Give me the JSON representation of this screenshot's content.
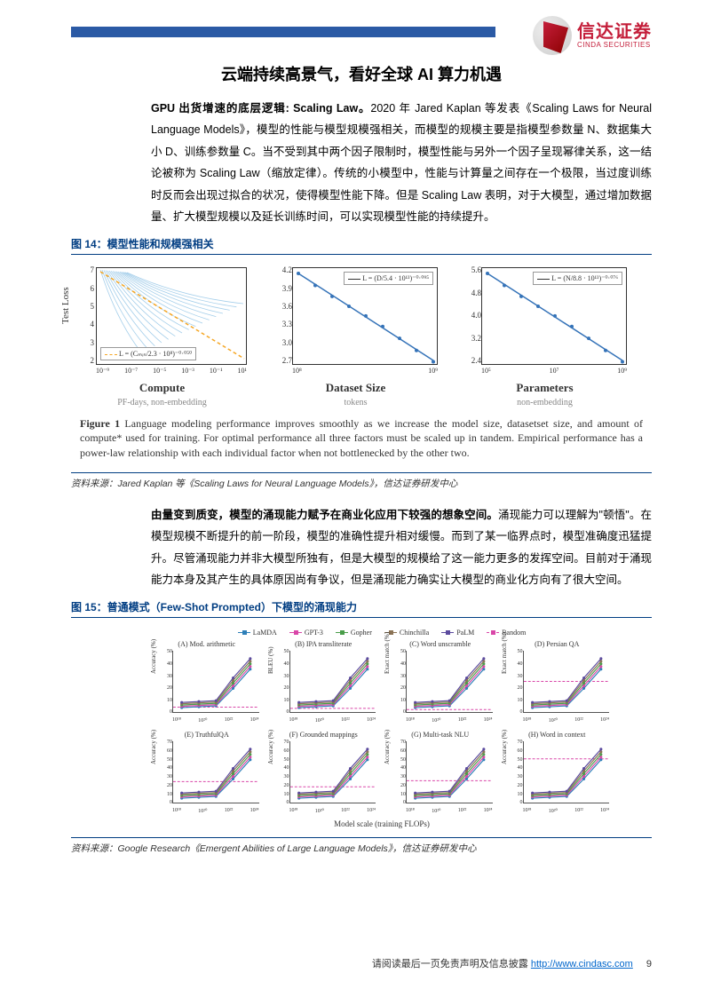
{
  "brand": {
    "cn": "信达证券",
    "en": "CINDA SECURITIES"
  },
  "title": "云端持续高景气，看好全球 AI 算力机遇",
  "para1_lead": "GPU 出货增速的底层逻辑: Scaling Law。",
  "para1_body": "2020 年 Jared Kaplan 等发表《Scaling Laws for Neural Language Models》，模型的性能与模型规模强相关，而模型的规模主要是指模型参数量 N、数据集大小 D、训练参数量 C。当不受到其中两个因子限制时，模型性能与另外一个因子呈现幂律关系，这一结论被称为 Scaling Law（缩放定律）。传统的小模型中，性能与计算量之间存在一个极限，当过度训练时反而会出现过拟合的状况，使得模型性能下降。但是 Scaling Law 表明，对于大模型，通过增加数据量、扩大模型规模以及延长训练时间，可以实现模型性能的持续提升。",
  "fig14_label": "图 14：模型性能和规模强相关",
  "chart1": {
    "ylabel": "Test Loss",
    "panel1": {
      "xlabel": "Compute",
      "xsub": "PF-days, non-embedding",
      "yticks": [
        "7",
        "6",
        "5",
        "4",
        "3",
        "2"
      ],
      "xticks": [
        "10⁻⁹",
        "10⁻⁷",
        "10⁻⁵",
        "10⁻³",
        "10⁻¹",
        "10¹"
      ],
      "legend": "L = (Cₘᵢₙ/2.3 · 10⁸)⁻⁰·⁰⁵⁰",
      "line_color": "#f5a623",
      "fan_color": "#5aa6d8",
      "fan_lines": 16
    },
    "panel2": {
      "xlabel": "Dataset Size",
      "xsub": "tokens",
      "yticks": [
        "4.2",
        "3.9",
        "3.6",
        "3.3",
        "3.0",
        "2.7"
      ],
      "xticks": [
        "10⁸",
        "10⁹"
      ],
      "legend": "L = (D/5.4 · 10¹³)⁻⁰·⁰⁹⁵",
      "line_color": "#3573b8"
    },
    "panel3": {
      "xlabel": "Parameters",
      "xsub": "non-embedding",
      "yticks": [
        "5.6",
        "4.8",
        "4.0",
        "3.2",
        "2.4"
      ],
      "xticks": [
        "10⁵",
        "10⁷",
        "10⁹"
      ],
      "legend": "L = (N/8.8 · 10¹³)⁻⁰·⁰⁷⁶",
      "line_color": "#3573b8"
    },
    "caption_lead": "Figure 1",
    "caption": "   Language modeling performance improves smoothly as we increase the model size, datasetset size, and amount of compute* used for training. For optimal performance all three factors must be scaled up in tandem. Empirical performance has a power-law relationship with each individual factor when not bottlenecked by the other two."
  },
  "source1": "资料来源：Jared Kaplan 等《Scaling Laws for Neural Language Models》，信达证券研发中心",
  "para2_lead": "由量变到质变，模型的涌现能力赋予在商业化应用下较强的想象空间。",
  "para2_body": "涌现能力可以理解为\"顿悟\"。在模型规模不断提升的前一阶段，模型的准确性提升相对缓慢。而到了某一临界点时，模型准确度迅猛提升。尽管涌现能力并非大模型所独有，但是大模型的规模给了这一能力更多的发挥空间。目前对于涌现能力本身及其产生的具体原因尚有争议，但是涌现能力确实让大模型的商业化方向有了很大空间。",
  "fig15_label": "图 15：普通模式（Few-Shot   Prompted）下模型的涌现能力",
  "chart2": {
    "legend": [
      {
        "name": "LaMDA",
        "color": "#2e7fb8",
        "mark": "circle"
      },
      {
        "name": "GPT-3",
        "color": "#d946a8",
        "mark": "diamond"
      },
      {
        "name": "Gopher",
        "color": "#4a9d4a",
        "mark": "square"
      },
      {
        "name": "Chinchilla",
        "color": "#8b7355",
        "mark": "triangle"
      },
      {
        "name": "PaLM",
        "color": "#5b4a9e",
        "mark": "hex"
      },
      {
        "name": "Random",
        "color": "#d946a8",
        "mark": "dash"
      }
    ],
    "panels": [
      {
        "t": "(A) Mod. arithmetic",
        "yl": "Accuracy (%)",
        "ymax": 50,
        "random": 4
      },
      {
        "t": "(B) IPA transliterate",
        "yl": "BLEU (%)",
        "ymax": 50,
        "random": 3
      },
      {
        "t": "(C) Word unscramble",
        "yl": "Exact match (%)",
        "ymax": 50,
        "random": 2
      },
      {
        "t": "(D) Persian QA",
        "yl": "Exact match (%)",
        "ymax": 50,
        "random": 25
      },
      {
        "t": "(E) TruthfulQA",
        "yl": "Accuracy (%)",
        "ymax": 70,
        "random": 24
      },
      {
        "t": "(F) Grounded mappings",
        "yl": "Accuracy (%)",
        "ymax": 70,
        "random": 18
      },
      {
        "t": "(G) Multi-task NLU",
        "yl": "Accuracy (%)",
        "ymax": 70,
        "random": 25
      },
      {
        "t": "(H) Word in context",
        "yl": "Accuracy (%)",
        "ymax": 70,
        "random": 50
      }
    ],
    "yticks_a": [
      "0",
      "10",
      "20",
      "30",
      "40",
      "50"
    ],
    "yticks_b": [
      "0",
      "10",
      "20",
      "30",
      "40",
      "50",
      "60",
      "70"
    ],
    "xticks": [
      "10¹⁸",
      "10²⁰",
      "10²²",
      "10²⁴"
    ],
    "xlabel": "Model scale (training FLOPs)"
  },
  "source2": "资料来源：Google Research《Emergent Abilities of Large Language Models》，信达证券研发中心",
  "footer_text": "请阅读最后一页免责声明及信息披露",
  "footer_url": "http://www.cindasc.com",
  "page_num": "9"
}
